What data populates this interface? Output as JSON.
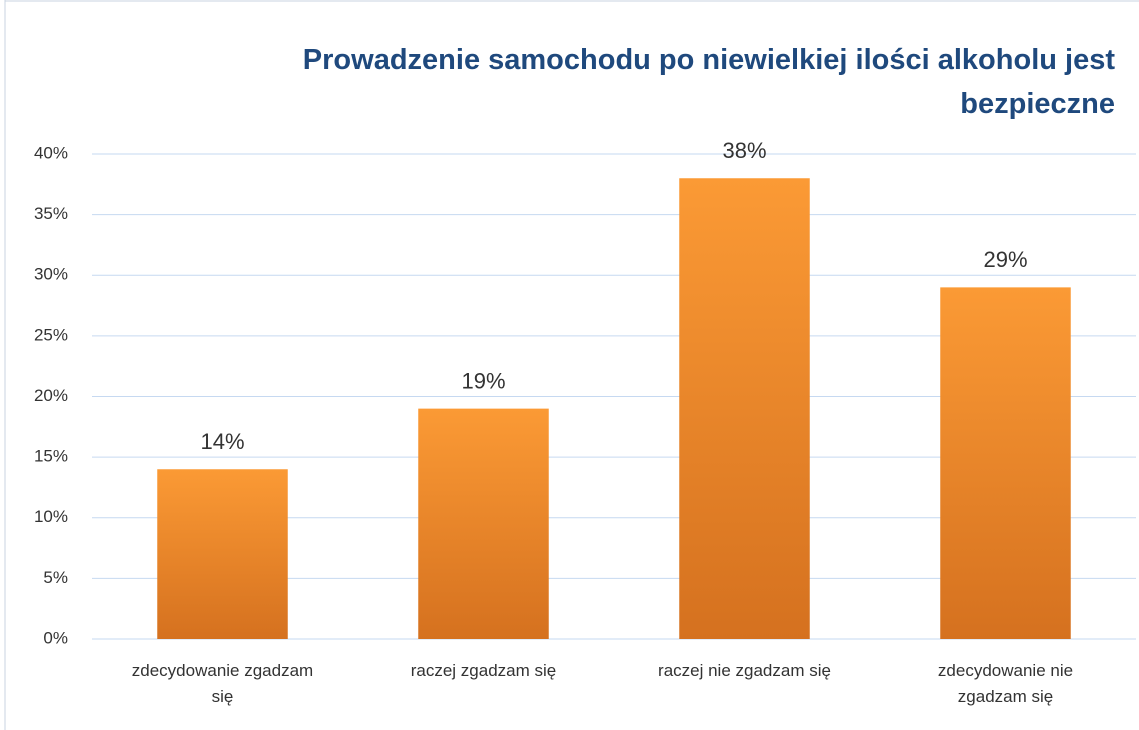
{
  "chart_data": {
    "type": "bar",
    "title": "Prowadzenie samochodu po niewielkiej ilości alkoholu jest bezpieczne",
    "categories": [
      "zdecydowanie zgadzam się",
      "raczej zgadzam się",
      "raczej nie zgadzam się",
      "zdecydowanie nie zgadzam się"
    ],
    "values": [
      14,
      19,
      38,
      29
    ],
    "value_labels": [
      "14%",
      "19%",
      "38%",
      "29%"
    ],
    "color": "#f0892a",
    "ylim": [
      0,
      40
    ],
    "yticks": [
      {
        "value": 0,
        "label": "0%"
      },
      {
        "value": 5,
        "label": "5%"
      },
      {
        "value": 10,
        "label": "10%"
      },
      {
        "value": 15,
        "label": "15%"
      },
      {
        "value": 20,
        "label": "20%"
      },
      {
        "value": 25,
        "label": "25%"
      },
      {
        "value": 30,
        "label": "30%"
      },
      {
        "value": 35,
        "label": "35%"
      },
      {
        "value": 40,
        "label": "40%"
      }
    ],
    "grid": true
  }
}
